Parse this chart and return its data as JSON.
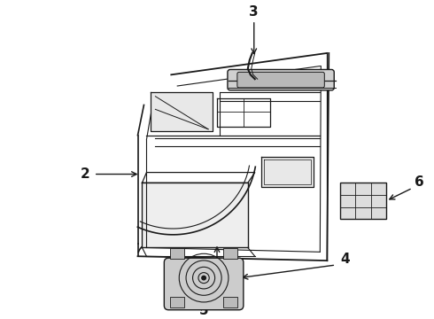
{
  "background_color": "#ffffff",
  "figure_width": 4.9,
  "figure_height": 3.6,
  "dpi": 100,
  "line_color": "#1a1a1a",
  "label_fontsize": 11,
  "label_fontweight": "bold",
  "panel_fill": "#f0f0f0",
  "handle_fill": "#d8d8d8",
  "switch_fill": "#e8e8e8"
}
